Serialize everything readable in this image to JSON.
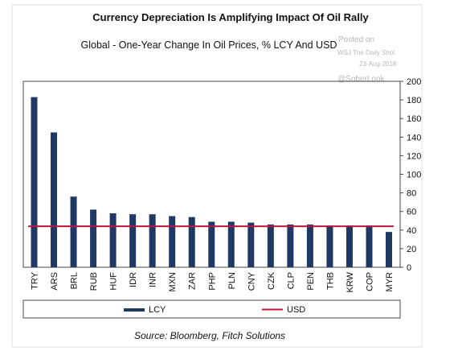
{
  "chart_data": {
    "type": "bar",
    "title": "Currency Depreciation Is Amplifying Impact Of Oil Rally",
    "subtitle": "Global - One-Year Change In Oil Prices, % LCY And USD",
    "categories": [
      "TRY",
      "ARS",
      "BRL",
      "RUB",
      "HUF",
      "IDR",
      "INR",
      "MXN",
      "ZAR",
      "PHP",
      "PLN",
      "CNY",
      "CZK",
      "CLP",
      "PEN",
      "THB",
      "KRW",
      "COP",
      "MYR"
    ],
    "series": [
      {
        "name": "LCY",
        "type": "bar",
        "color": "#1f3864",
        "values": [
          183,
          145,
          76,
          62,
          58,
          57,
          57,
          55,
          54,
          49,
          49,
          48,
          46,
          46,
          46,
          45,
          45,
          45,
          38
        ]
      },
      {
        "name": "USD",
        "type": "line",
        "color": "#c0143c",
        "values": [
          44,
          44,
          44,
          44,
          44,
          44,
          44,
          44,
          44,
          44,
          44,
          44,
          44,
          44,
          44,
          44,
          44,
          44,
          44
        ]
      }
    ],
    "ylim": [
      0,
      200
    ],
    "yticks": [
      0,
      20,
      40,
      60,
      80,
      100,
      120,
      140,
      160,
      180,
      200
    ],
    "y_axis_side": "right",
    "grid": false,
    "legend_position": "bottom",
    "source": "Source: Bloomberg, Fitch Solutions"
  },
  "watermark": {
    "line1": "Posted on",
    "line2": "WSJ The Daily Shot",
    "line3": "23-Aug-2018",
    "line4": "@SoberLook"
  }
}
